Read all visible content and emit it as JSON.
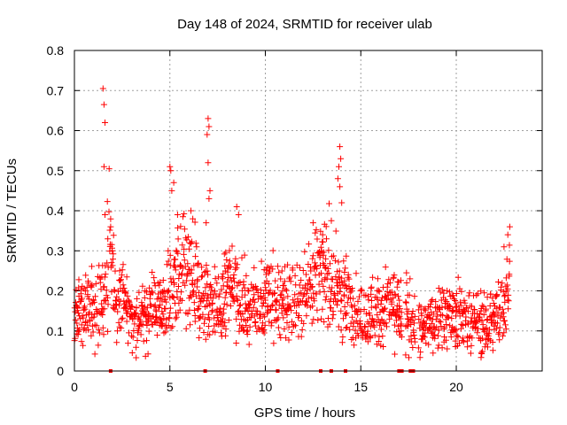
{
  "chart_data": {
    "type": "scatter",
    "title": "Day 148 of 2024, SRMTID for receiver ulab",
    "xlabel": "GPS time / hours",
    "ylabel": "SRMTID / TECUs",
    "xlim": [
      0,
      24.5
    ],
    "ylim": [
      0,
      0.8
    ],
    "x_ticks": [
      0,
      5,
      10,
      15,
      20
    ],
    "x_tick_labels": [
      "0",
      "5",
      "10",
      "15",
      "20"
    ],
    "y_ticks": [
      0,
      0.1,
      0.2,
      0.3,
      0.4,
      0.5,
      0.6,
      0.7,
      0.8
    ],
    "y_tick_labels": [
      "0",
      "0.1",
      "0.2",
      "0.3",
      "0.4",
      "0.5",
      "0.6",
      "0.7",
      "0.8"
    ],
    "grid": true,
    "legend": "none",
    "marker": "+",
    "color": "#ff0000",
    "series": [
      {
        "name": "SRMTID",
        "profile": [
          [
            0.0,
            0.15
          ],
          [
            0.5,
            0.14
          ],
          [
            1.0,
            0.15
          ],
          [
            1.6,
            0.19
          ],
          [
            1.9,
            0.28
          ],
          [
            2.2,
            0.17
          ],
          [
            2.6,
            0.17
          ],
          [
            3.0,
            0.11
          ],
          [
            3.5,
            0.13
          ],
          [
            4.0,
            0.15
          ],
          [
            4.5,
            0.15
          ],
          [
            4.9,
            0.18
          ],
          [
            5.3,
            0.22
          ],
          [
            5.8,
            0.25
          ],
          [
            6.3,
            0.2
          ],
          [
            6.8,
            0.17
          ],
          [
            7.2,
            0.17
          ],
          [
            7.6,
            0.15
          ],
          [
            8.0,
            0.21
          ],
          [
            8.6,
            0.19
          ],
          [
            9.0,
            0.15
          ],
          [
            9.5,
            0.16
          ],
          [
            10.0,
            0.18
          ],
          [
            10.5,
            0.16
          ],
          [
            11.0,
            0.17
          ],
          [
            11.5,
            0.18
          ],
          [
            12.0,
            0.19
          ],
          [
            12.5,
            0.24
          ],
          [
            13.0,
            0.26
          ],
          [
            13.5,
            0.22
          ],
          [
            14.0,
            0.2
          ],
          [
            14.5,
            0.16
          ],
          [
            15.0,
            0.14
          ],
          [
            15.5,
            0.15
          ],
          [
            16.0,
            0.15
          ],
          [
            16.6,
            0.17
          ],
          [
            17.0,
            0.15
          ],
          [
            17.6,
            0.12
          ],
          [
            18.0,
            0.1
          ],
          [
            18.5,
            0.11
          ],
          [
            19.0,
            0.13
          ],
          [
            19.5,
            0.14
          ],
          [
            20.0,
            0.13
          ],
          [
            20.5,
            0.13
          ],
          [
            21.0,
            0.12
          ],
          [
            21.5,
            0.11
          ],
          [
            22.0,
            0.13
          ],
          [
            22.4,
            0.16
          ],
          [
            22.8,
            0.22
          ]
        ],
        "gaps": [
          [
            17.15,
            17.35
          ],
          [
            17.85,
            18.0
          ]
        ],
        "peaks": [
          {
            "x": 1.5,
            "y": 0.705
          },
          {
            "x": 1.55,
            "y": 0.665
          },
          {
            "x": 1.6,
            "y": 0.62
          },
          {
            "x": 1.55,
            "y": 0.51
          },
          {
            "x": 1.6,
            "y": 0.39
          },
          {
            "x": 1.9,
            "y": 0.36
          },
          {
            "x": 1.75,
            "y": 0.33
          },
          {
            "x": 5.0,
            "y": 0.51
          },
          {
            "x": 5.05,
            "y": 0.5
          },
          {
            "x": 5.2,
            "y": 0.47
          },
          {
            "x": 5.1,
            "y": 0.45
          },
          {
            "x": 5.4,
            "y": 0.39
          },
          {
            "x": 6.1,
            "y": 0.4
          },
          {
            "x": 6.2,
            "y": 0.38
          },
          {
            "x": 7.0,
            "y": 0.63
          },
          {
            "x": 7.05,
            "y": 0.61
          },
          {
            "x": 6.95,
            "y": 0.59
          },
          {
            "x": 7.0,
            "y": 0.52
          },
          {
            "x": 7.1,
            "y": 0.45
          },
          {
            "x": 7.05,
            "y": 0.43
          },
          {
            "x": 6.9,
            "y": 0.37
          },
          {
            "x": 8.5,
            "y": 0.41
          },
          {
            "x": 8.6,
            "y": 0.39
          },
          {
            "x": 12.5,
            "y": 0.37
          },
          {
            "x": 13.0,
            "y": 0.34
          },
          {
            "x": 13.2,
            "y": 0.33
          },
          {
            "x": 13.9,
            "y": 0.56
          },
          {
            "x": 13.95,
            "y": 0.53
          },
          {
            "x": 13.85,
            "y": 0.51
          },
          {
            "x": 13.8,
            "y": 0.48
          },
          {
            "x": 13.9,
            "y": 0.46
          },
          {
            "x": 14.0,
            "y": 0.42
          },
          {
            "x": 17.4,
            "y": 0.22
          },
          {
            "x": 17.35,
            "y": 0.04
          },
          {
            "x": 22.8,
            "y": 0.36
          },
          {
            "x": 22.7,
            "y": 0.34
          },
          {
            "x": 22.5,
            "y": 0.31
          }
        ],
        "baseline_markers_x": [
          1.9,
          6.85,
          10.65,
          12.9,
          13.45,
          14.2,
          17.0,
          17.15,
          17.6,
          17.75
        ]
      }
    ]
  }
}
